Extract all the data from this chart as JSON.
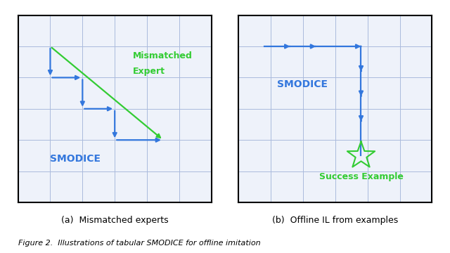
{
  "blue": "#3377dd",
  "green": "#33cc33",
  "grid_color": "#aabbdd",
  "panel_bg": "#eef2fa",
  "caption_a": "(a)  Mismatched experts",
  "caption_b": "(b)  Offline IL from examples",
  "figure_caption": "Figure 2.  Illustrations of tabular SMODICE for offline imitation",
  "label_a_smodice": "SMODICE",
  "label_a_expert_line1": "Mismatched",
  "label_a_expert_line2": "Expert",
  "label_b_smodice": "SMODICE",
  "label_b_success": "Success Example",
  "grid_n": 6
}
